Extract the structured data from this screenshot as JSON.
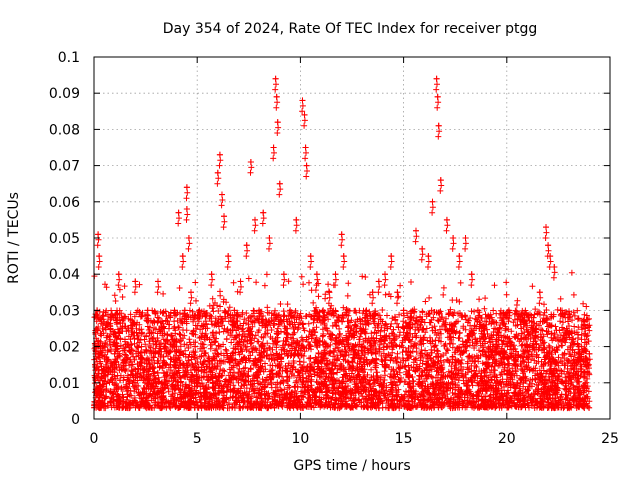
{
  "chart_data": {
    "type": "scatter",
    "title": "Day 354 of 2024, Rate Of TEC Index for receiver ptgg",
    "xlabel": "GPS time / hours",
    "ylabel": "ROTI / TECUs",
    "xlim": [
      0,
      25
    ],
    "ylim": [
      0,
      0.1
    ],
    "xticks": [
      0,
      5,
      10,
      15,
      20,
      25
    ],
    "xtick_labels": [
      "0",
      "5",
      "10",
      "15",
      "20",
      "25"
    ],
    "yticks": [
      0,
      0.01,
      0.02,
      0.03,
      0.04,
      0.05,
      0.06,
      0.07,
      0.08,
      0.09,
      0.1
    ],
    "ytick_labels": [
      "0",
      "0.01",
      "0.02",
      "0.03",
      "0.04",
      "0.05",
      "0.06",
      "0.07",
      "0.08",
      "0.09",
      "0.1"
    ],
    "grid": true,
    "marker": "+",
    "color": "#ff0000",
    "series": [
      {
        "name": "ROTI",
        "x": [
          0.05,
          0.15,
          0.2,
          0.25,
          0.3,
          0.5,
          0.8,
          1.0,
          1.2,
          1.5,
          1.8,
          2.0,
          2.3,
          2.6,
          2.9,
          3.1,
          3.4,
          3.7,
          3.9,
          4.1,
          4.3,
          4.4,
          4.5,
          4.5,
          4.6,
          4.7,
          4.9,
          5.1,
          5.4,
          5.7,
          6.0,
          6.1,
          6.2,
          6.3,
          6.5,
          6.8,
          7.1,
          7.4,
          7.6,
          7.8,
          8.0,
          8.2,
          8.5,
          8.7,
          8.8,
          8.85,
          8.9,
          9.0,
          9.2,
          9.5,
          9.8,
          10.1,
          10.2,
          10.25,
          10.3,
          10.5,
          10.8,
          11.1,
          11.4,
          11.7,
          12.0,
          12.1,
          12.3,
          12.6,
          12.9,
          13.2,
          13.5,
          13.8,
          14.1,
          14.4,
          14.7,
          15.0,
          15.3,
          15.6,
          15.9,
          16.2,
          16.4,
          16.6,
          16.65,
          16.7,
          16.8,
          17.1,
          17.4,
          17.7,
          18.0,
          18.3,
          18.6,
          18.9,
          19.2,
          19.5,
          19.8,
          20.1,
          20.4,
          20.7,
          21.0,
          21.3,
          21.6,
          21.9,
          22.0,
          22.1,
          22.3,
          22.6,
          22.9,
          23.2,
          23.5,
          23.8,
          24.0
        ],
        "y": [
          0.015,
          0.03,
          0.051,
          0.045,
          0.02,
          0.012,
          0.025,
          0.018,
          0.04,
          0.022,
          0.015,
          0.038,
          0.02,
          0.03,
          0.017,
          0.038,
          0.025,
          0.015,
          0.03,
          0.057,
          0.045,
          0.03,
          0.064,
          0.058,
          0.05,
          0.035,
          0.02,
          0.03,
          0.025,
          0.04,
          0.068,
          0.073,
          0.062,
          0.056,
          0.045,
          0.03,
          0.038,
          0.048,
          0.071,
          0.055,
          0.03,
          0.057,
          0.05,
          0.075,
          0.094,
          0.089,
          0.082,
          0.065,
          0.04,
          0.03,
          0.055,
          0.088,
          0.084,
          0.075,
          0.07,
          0.045,
          0.04,
          0.03,
          0.035,
          0.04,
          0.051,
          0.045,
          0.03,
          0.02,
          0.025,
          0.03,
          0.035,
          0.038,
          0.04,
          0.045,
          0.035,
          0.03,
          0.025,
          0.052,
          0.047,
          0.045,
          0.06,
          0.094,
          0.089,
          0.081,
          0.066,
          0.055,
          0.05,
          0.045,
          0.05,
          0.04,
          0.03,
          0.025,
          0.02,
          0.022,
          0.018,
          0.03,
          0.015,
          0.025,
          0.02,
          0.028,
          0.035,
          0.053,
          0.048,
          0.045,
          0.042,
          0.03,
          0.025,
          0.022,
          0.02,
          0.025,
          0.018
        ]
      }
    ],
    "density_band": {
      "description_values": "dense continuous band of points",
      "x_range": [
        0,
        24
      ],
      "typical_low": 0.003,
      "typical_high": 0.03
    }
  }
}
